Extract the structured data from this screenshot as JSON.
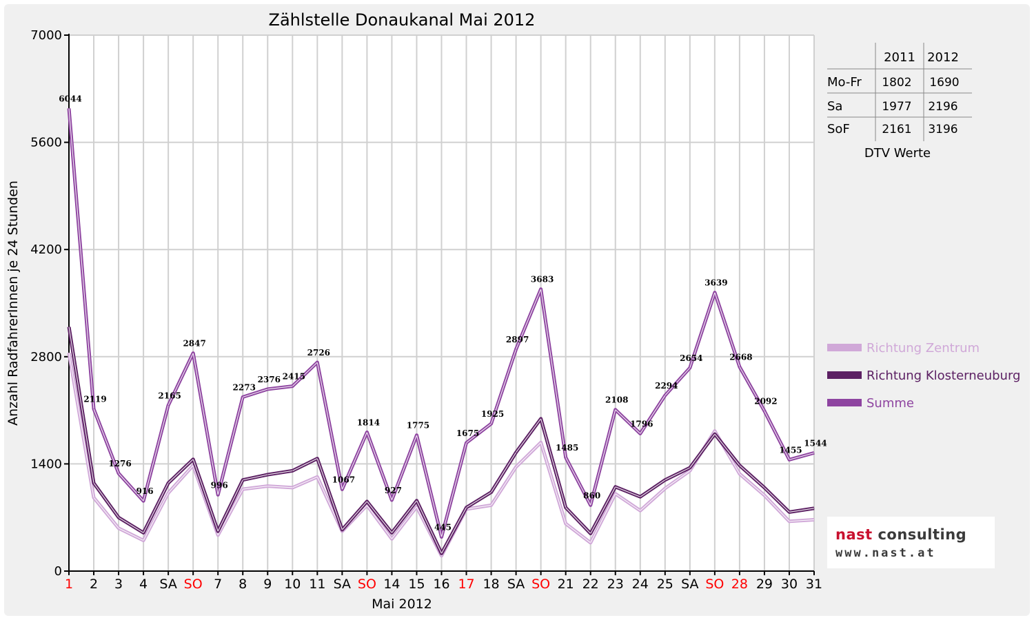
{
  "chart_data": {
    "type": "line",
    "title": "Zählstelle Donaukanal Mai 2012",
    "xlabel": "Mai 2012",
    "ylabel": "Anzahl RadfahrerInnen je 24 Stunden",
    "ylim": [
      0,
      7000
    ],
    "yticks": [
      "0",
      "1400",
      "2800",
      "4200",
      "5600",
      "7000"
    ],
    "grid": true,
    "legend_position": "right",
    "categories": [
      "1",
      "2",
      "3",
      "4",
      "SA",
      "SO",
      "7",
      "8",
      "9",
      "10",
      "11",
      "SA",
      "SO",
      "14",
      "15",
      "16",
      "17",
      "18",
      "SA",
      "SO",
      "21",
      "22",
      "23",
      "24",
      "25",
      "SA",
      "SO",
      "28",
      "29",
      "30",
      "31"
    ],
    "red_categories": [
      0,
      5,
      12,
      16,
      19,
      26,
      27
    ],
    "series": [
      {
        "name": "Richtung Zentrum",
        "color": "#d0a8d8",
        "values": [
          2850,
          960,
          560,
          400,
          1020,
          1380,
          470,
          1070,
          1110,
          1090,
          1230,
          520,
          860,
          420,
          840,
          200,
          810,
          860,
          1360,
          1680,
          620,
          370,
          1010,
          790,
          1080,
          1310,
          1830,
          1270,
          990,
          650,
          670
        ]
      },
      {
        "name": "Richtung Klosterneuburg",
        "color": "#5c2063",
        "values": [
          3190,
          1150,
          700,
          500,
          1150,
          1460,
          520,
          1190,
          1260,
          1310,
          1470,
          540,
          910,
          500,
          920,
          230,
          830,
          1030,
          1550,
          1990,
          830,
          490,
          1100,
          970,
          1190,
          1350,
          1790,
          1380,
          1090,
          770,
          820
        ]
      },
      {
        "name": "Summe",
        "color": "#8e44a0",
        "values": [
          6044,
          2119,
          1276,
          916,
          2165,
          2847,
          996,
          2273,
          2376,
          2415,
          2726,
          1067,
          1814,
          927,
          1775,
          445,
          1675,
          1925,
          2897,
          3683,
          1485,
          860,
          2108,
          1796,
          2294,
          2654,
          3639,
          2668,
          2092,
          1455,
          1544
        ],
        "data_labels": [
          "6044",
          "2119",
          "1276",
          "916",
          "2165",
          "2847",
          "996",
          "2273",
          "2376",
          "2415",
          "2726",
          "1067",
          "1814",
          "927",
          "1775",
          "445",
          "1675",
          "1925",
          "2897",
          "3683",
          "1485",
          "860",
          "2108",
          "1796",
          "2294",
          "2654",
          "3639",
          "2668",
          "2092",
          "1455",
          "1544"
        ]
      }
    ]
  },
  "dtv_table": {
    "caption": "DTV Werte",
    "columns": [
      "",
      "2011",
      "2012"
    ],
    "rows": [
      {
        "label": "Mo-Fr",
        "v2011": "1802",
        "v2012": "1690"
      },
      {
        "label": "Sa",
        "v2011": "1977",
        "v2012": "2196"
      },
      {
        "label": "SoF",
        "v2011": "2161",
        "v2012": "3196"
      }
    ]
  },
  "logo": {
    "name_part1": "nast",
    "name_part2": "consulting",
    "url": "www.nast.at"
  }
}
